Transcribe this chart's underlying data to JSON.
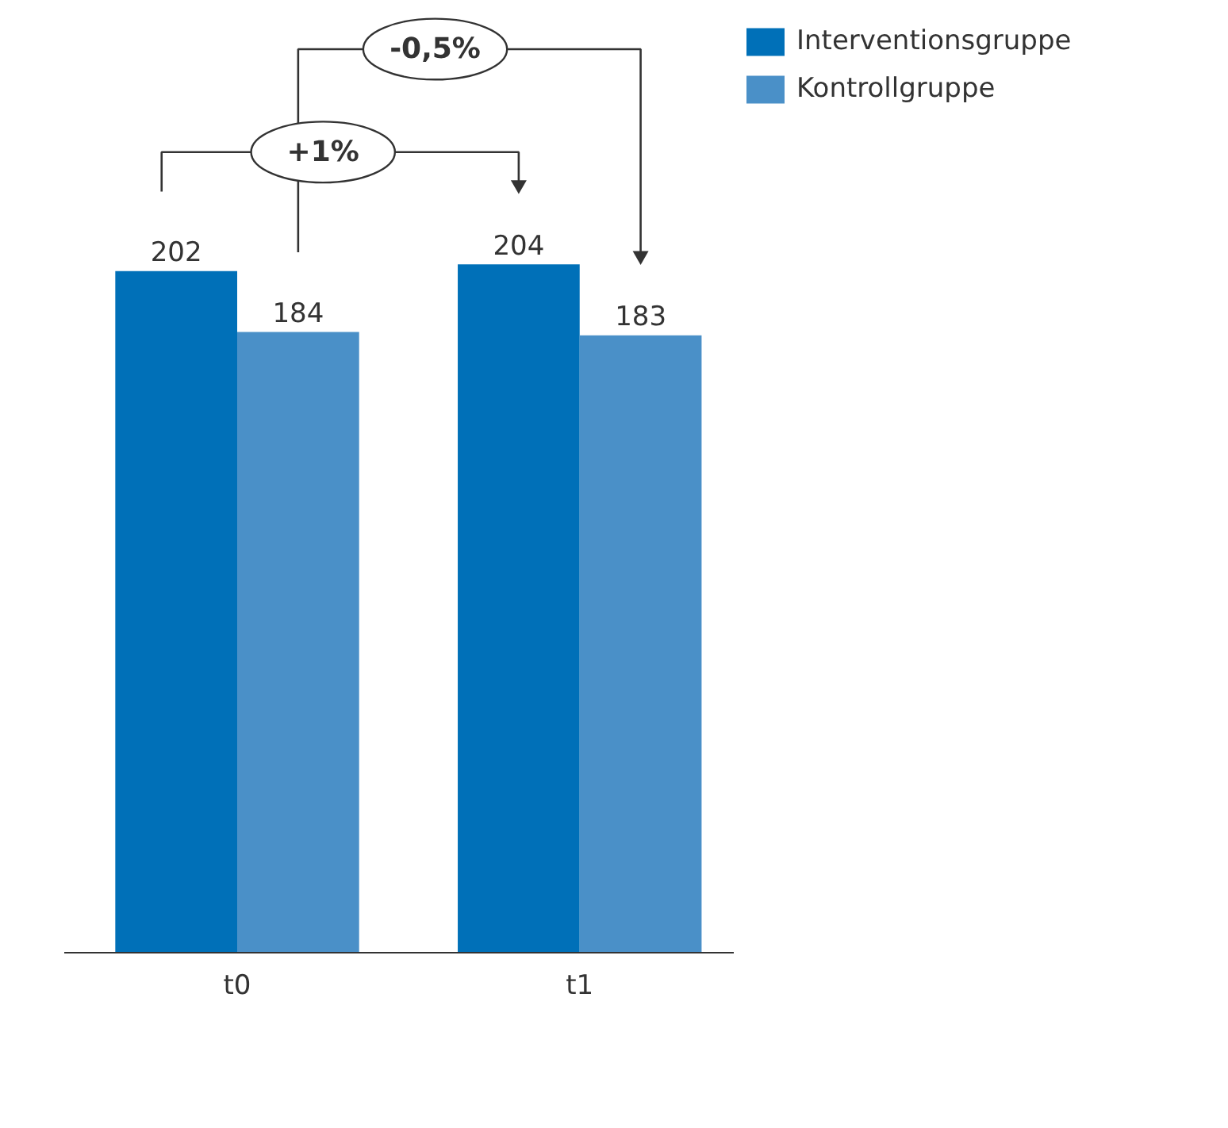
{
  "chart_data": {
    "type": "bar",
    "categories": [
      "t0",
      "t1"
    ],
    "series": [
      {
        "name": "Interventionsgruppe",
        "color": "#0070b8",
        "values": [
          202,
          204
        ]
      },
      {
        "name": "Kontrollgruppe",
        "color": "#4a90c8",
        "values": [
          184,
          183
        ]
      }
    ],
    "tick_labels": "x",
    "data_labels": true,
    "grid": false,
    "legend": "right",
    "annotations": [
      "+1%",
      "-0,5%"
    ]
  }
}
